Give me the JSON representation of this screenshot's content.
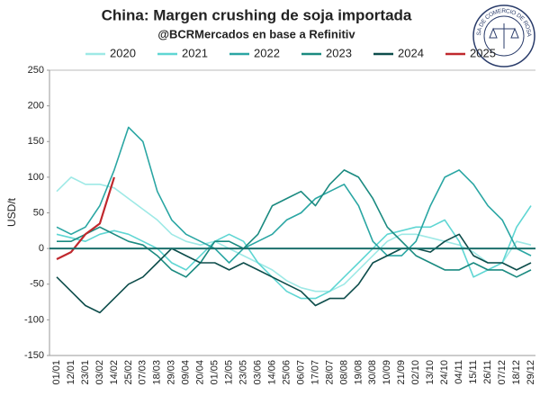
{
  "chart_data": {
    "type": "line",
    "title": "China: Margen crushing de soja importada",
    "subtitle": "@BCRMercados en base a Refinitiv",
    "y_label": "USD/t",
    "logo_text": "BOLSA DE COMERCIO DE ROSARIO",
    "categories": [
      "01/01",
      "12/01",
      "23/01",
      "03/02",
      "14/02",
      "25/02",
      "07/03",
      "18/03",
      "29/03",
      "09/04",
      "20/04",
      "01/05",
      "12/05",
      "23/05",
      "03/06",
      "14/06",
      "25/06",
      "06/07",
      "17/07",
      "28/07",
      "08/08",
      "19/08",
      "30/08",
      "10/09",
      "21/09",
      "02/10",
      "13/10",
      "24/10",
      "04/11",
      "15/11",
      "26/11",
      "07/12",
      "18/12",
      "29/12"
    ],
    "series": [
      {
        "name": "2020",
        "color": "#9ee9e6",
        "values": [
          80,
          100,
          90,
          90,
          85,
          70,
          55,
          40,
          20,
          10,
          5,
          10,
          0,
          -10,
          -20,
          -30,
          -45,
          -55,
          -60,
          -60,
          -50,
          -30,
          -10,
          10,
          20,
          20,
          15,
          10,
          5,
          -5,
          -20,
          -20,
          10,
          5
        ]
      },
      {
        "name": "2021",
        "color": "#5fd6d3",
        "values": [
          20,
          15,
          10,
          20,
          25,
          20,
          10,
          0,
          -20,
          -30,
          -10,
          10,
          20,
          10,
          -20,
          -40,
          -60,
          -70,
          -70,
          -60,
          -40,
          -20,
          0,
          20,
          25,
          30,
          30,
          40,
          10,
          -40,
          -30,
          -20,
          30,
          60
        ]
      },
      {
        "name": "2022",
        "color": "#2aa6a3",
        "values": [
          30,
          20,
          30,
          60,
          110,
          170,
          150,
          80,
          40,
          20,
          10,
          0,
          -20,
          0,
          10,
          20,
          40,
          50,
          70,
          80,
          90,
          60,
          10,
          -10,
          -10,
          10,
          60,
          100,
          110,
          90,
          60,
          40,
          0,
          -10
        ]
      },
      {
        "name": "2023",
        "color": "#1a8a80",
        "values": [
          10,
          10,
          20,
          30,
          20,
          10,
          5,
          -10,
          -30,
          -40,
          -20,
          10,
          10,
          0,
          20,
          60,
          70,
          80,
          60,
          90,
          110,
          100,
          70,
          30,
          10,
          -10,
          -20,
          -30,
          -30,
          -20,
          -30,
          -30,
          -40,
          -30
        ]
      },
      {
        "name": "2024",
        "color": "#0d4d4b",
        "values": [
          -40,
          -60,
          -80,
          -90,
          -70,
          -50,
          -40,
          -20,
          0,
          -10,
          -20,
          -20,
          -30,
          -20,
          -30,
          -40,
          -50,
          -60,
          -80,
          -70,
          -70,
          -50,
          -20,
          -10,
          0,
          0,
          -5,
          10,
          20,
          -10,
          -20,
          -20,
          -30,
          -20
        ]
      },
      {
        "name": "2025",
        "color": "#c0282d",
        "values": [
          -15,
          -5,
          20,
          35,
          100,
          null,
          null,
          null,
          null,
          null,
          null,
          null,
          null,
          null,
          null,
          null,
          null,
          null,
          null,
          null,
          null,
          null,
          null,
          null,
          null,
          null,
          null,
          null,
          null,
          null,
          null,
          null,
          null,
          null
        ]
      }
    ],
    "ylim": [
      -150,
      250
    ],
    "yticks": [
      -150,
      -100,
      -50,
      0,
      50,
      100,
      150,
      200,
      250
    ],
    "grid": false
  }
}
